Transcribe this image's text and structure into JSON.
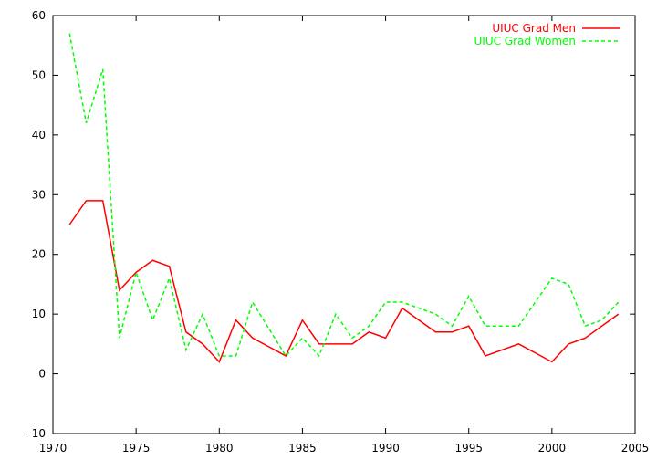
{
  "chart_data": {
    "type": "line",
    "title": "",
    "xlabel": "",
    "ylabel": "",
    "xlim": [
      1970,
      2005
    ],
    "ylim": [
      -10,
      60
    ],
    "xticks": [
      1970,
      1975,
      1980,
      1985,
      1990,
      1995,
      2000,
      2005
    ],
    "yticks": [
      -10,
      0,
      10,
      20,
      30,
      40,
      50,
      60
    ],
    "grid": false,
    "legend_position": "top-right",
    "series": [
      {
        "name": "UIUC Grad Men",
        "color": "#ff0000",
        "dash": "solid",
        "points": [
          [
            1971,
            25
          ],
          [
            1972,
            29
          ],
          [
            1973,
            29
          ],
          [
            1974,
            14
          ],
          [
            1975,
            17
          ],
          [
            1976,
            19
          ],
          [
            1977,
            18
          ],
          [
            1978,
            7
          ],
          [
            1979,
            5
          ],
          [
            1980,
            2
          ],
          [
            1981,
            9
          ],
          [
            1982,
            6
          ],
          [
            1984,
            3
          ],
          [
            1985,
            9
          ],
          [
            1986,
            5
          ],
          [
            1987,
            5
          ],
          [
            1988,
            5
          ],
          [
            1989,
            7
          ],
          [
            1990,
            6
          ],
          [
            1991,
            11
          ],
          [
            1993,
            7
          ],
          [
            1994,
            7
          ],
          [
            1995,
            8
          ],
          [
            1996,
            3
          ],
          [
            1998,
            5
          ],
          [
            2000,
            2
          ],
          [
            2001,
            5
          ],
          [
            2002,
            6
          ],
          [
            2004,
            10
          ]
        ]
      },
      {
        "name": "UIUC Grad Women",
        "color": "#00ff00",
        "dash": "dashed",
        "points": [
          [
            1971,
            57
          ],
          [
            1972,
            42
          ],
          [
            1973,
            51
          ],
          [
            1974,
            6
          ],
          [
            1975,
            17
          ],
          [
            1976,
            9
          ],
          [
            1977,
            16
          ],
          [
            1978,
            4
          ],
          [
            1979,
            10
          ],
          [
            1980,
            3
          ],
          [
            1981,
            3
          ],
          [
            1982,
            12
          ],
          [
            1984,
            3
          ],
          [
            1985,
            6
          ],
          [
            1986,
            3
          ],
          [
            1987,
            10
          ],
          [
            1988,
            6
          ],
          [
            1989,
            8
          ],
          [
            1990,
            12
          ],
          [
            1991,
            12
          ],
          [
            1993,
            10
          ],
          [
            1994,
            8
          ],
          [
            1995,
            13
          ],
          [
            1996,
            8
          ],
          [
            1998,
            8
          ],
          [
            2000,
            16
          ],
          [
            2001,
            15
          ],
          [
            2002,
            8
          ],
          [
            2003,
            9
          ],
          [
            2004,
            12
          ]
        ]
      }
    ]
  }
}
